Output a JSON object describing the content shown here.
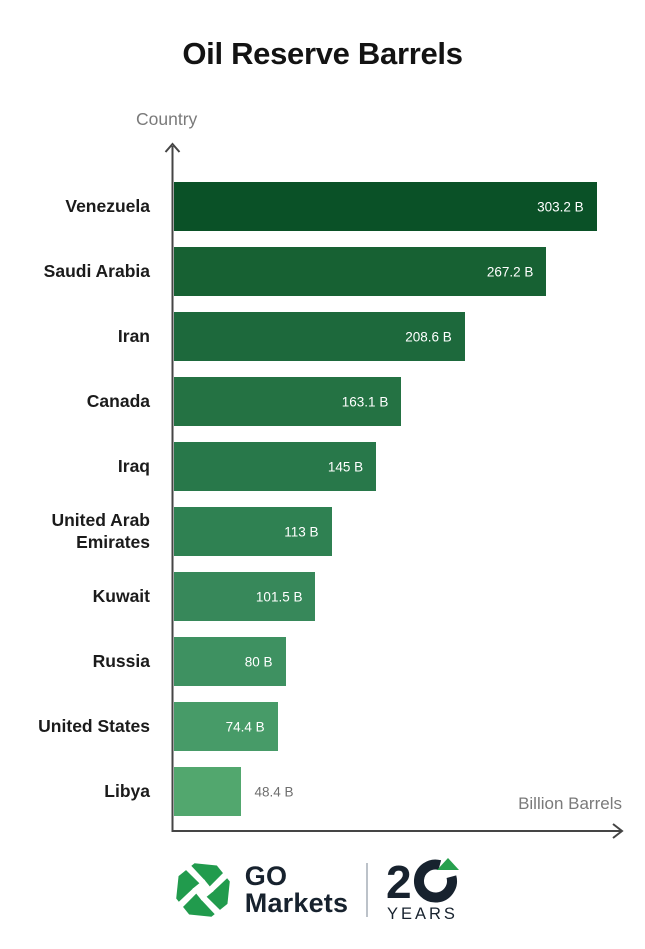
{
  "chart_data": {
    "type": "bar",
    "orientation": "horizontal",
    "title": "Oil Reserve Barrels",
    "xlabel": "Billion Barrels",
    "ylabel": "Country",
    "xmax": 325,
    "grid": false,
    "legend": false,
    "categories": [
      "Venezuela",
      "Saudi Arabia",
      "Iran",
      "Canada",
      "Iraq",
      "United Arab Emirates",
      "Kuwait",
      "Russia",
      "United States",
      "Libya"
    ],
    "values": [
      303.2,
      267.2,
      208.6,
      163.1,
      145,
      113,
      101.5,
      80,
      74.4,
      48.4
    ],
    "value_labels": [
      "303.2 B",
      "267.2 B",
      "208.6 B",
      "163.1 B",
      "145 B",
      "113 B",
      "101.5 B",
      "80 B",
      "74.4 B",
      "48.4 B"
    ],
    "bar_colors": [
      "#0a5127",
      "#176133",
      "#1d693c",
      "#247243",
      "#28784a",
      "#2f8152",
      "#37885a",
      "#3e9161",
      "#479b68",
      "#52a76e"
    ],
    "value_label_placement": [
      "inside",
      "inside",
      "inside",
      "inside",
      "inside",
      "inside",
      "inside",
      "inside",
      "inside",
      "outside"
    ]
  },
  "footer": {
    "brand_line1": "GO",
    "brand_line2": "Markets",
    "anniversary_number_first_digit": "2",
    "anniversary_text": "YEARS",
    "icon_green": "#219b4d",
    "brand_navy": "#17222e",
    "triangle_green": "#27a04e"
  },
  "style": {
    "axis_color": "#454545",
    "muted_text": "#7a7a7a"
  }
}
